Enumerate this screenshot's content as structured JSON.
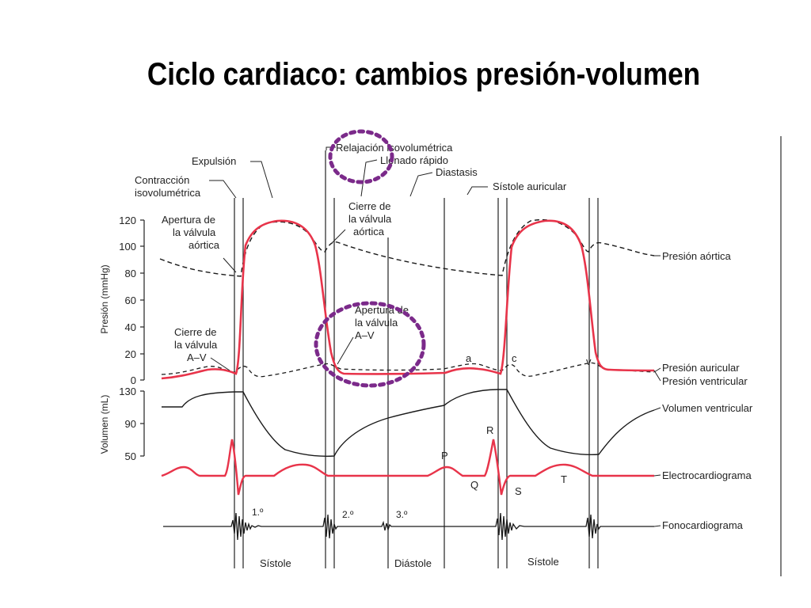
{
  "slide": {
    "title": "Ciclo cardiaco: cambios presión-volumen"
  },
  "phases_top": {
    "expulsion": "Expulsión",
    "contraccion_line1": "Contracción",
    "contraccion_line2": "isovolumétrica",
    "relajacion": "Relajación isovolumétrica",
    "llenado": "Llenado rápido",
    "diastasis": "Diastasis",
    "sistole_auricular": "Sístole auricular"
  },
  "annotations": {
    "apertura_aortica": [
      "Apertura de",
      "la válvula",
      "aórtica"
    ],
    "cierre_aortica": [
      "Cierre de",
      "la válvula",
      "aórtica"
    ],
    "cierre_av": [
      "Cierre de",
      "la válvula",
      "A–V"
    ],
    "apertura_av": [
      "Apertura de",
      "la válvula",
      "A–V"
    ],
    "wave_a": "a",
    "wave_c": "c",
    "wave_v": "v"
  },
  "axes": {
    "pressure_title": "Presión (mmHg)",
    "pressure_ticks": [
      "120",
      "100",
      "80",
      "60",
      "40",
      "20",
      "0"
    ],
    "volume_title": "Volumen (mL)",
    "volume_ticks": [
      "130",
      "90",
      "50"
    ]
  },
  "traces": {
    "aortic": "Presión aórtica",
    "atrial": "Presión auricular",
    "ventricular": "Presión ventricular",
    "volume": "Volumen ventricular",
    "ecg": "Electrocardiograma",
    "phono": "Fonocardiograma"
  },
  "ecg_waves": {
    "p": "P",
    "q": "Q",
    "r": "R",
    "s": "S",
    "t": "T"
  },
  "heart_sounds": {
    "first": "1.º",
    "second": "2.º",
    "third": "3.º"
  },
  "bottom_phases": {
    "systole1": "Sístole",
    "diastole": "Diástole",
    "systole2": "Sístole"
  },
  "colors": {
    "pressure_red": "#e8344a",
    "highlight_purple": "#7b2a8a",
    "ink": "#1a1a1a"
  }
}
